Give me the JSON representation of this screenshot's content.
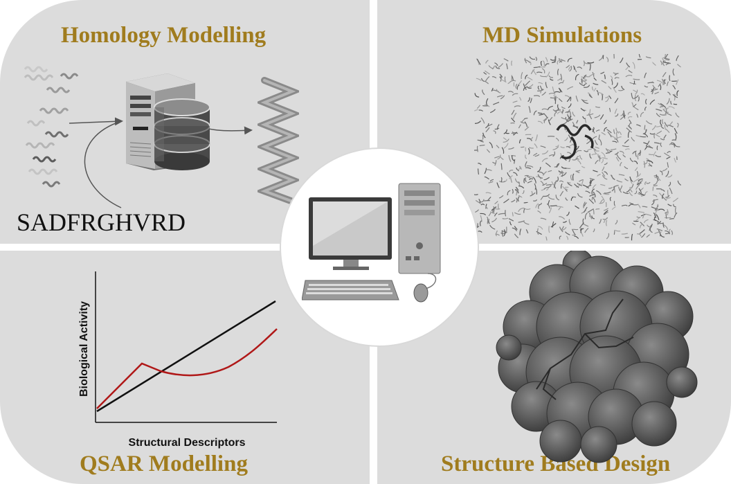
{
  "panels": {
    "top_left": {
      "title": "Homology Modelling",
      "sequence": "SADFRGHVRD"
    },
    "top_right": {
      "title": "MD Simulations"
    },
    "bottom_left": {
      "title": "QSAR Modelling",
      "x_axis_label": "Structural Descriptors",
      "y_axis_label": "Biological Activity"
    },
    "bottom_right": {
      "title": "Structure Based Design"
    }
  },
  "colors": {
    "title": "#a07c1e",
    "panel_bg": "#dcdcdc",
    "red_curve": "#b01818",
    "black_line": "#111111"
  },
  "icons": [
    "helix-sequences-icon",
    "server-tower-icon",
    "database-icon",
    "helix-model-icon",
    "water-box-icon",
    "desktop-computer-icon",
    "protein-surface-icon"
  ]
}
